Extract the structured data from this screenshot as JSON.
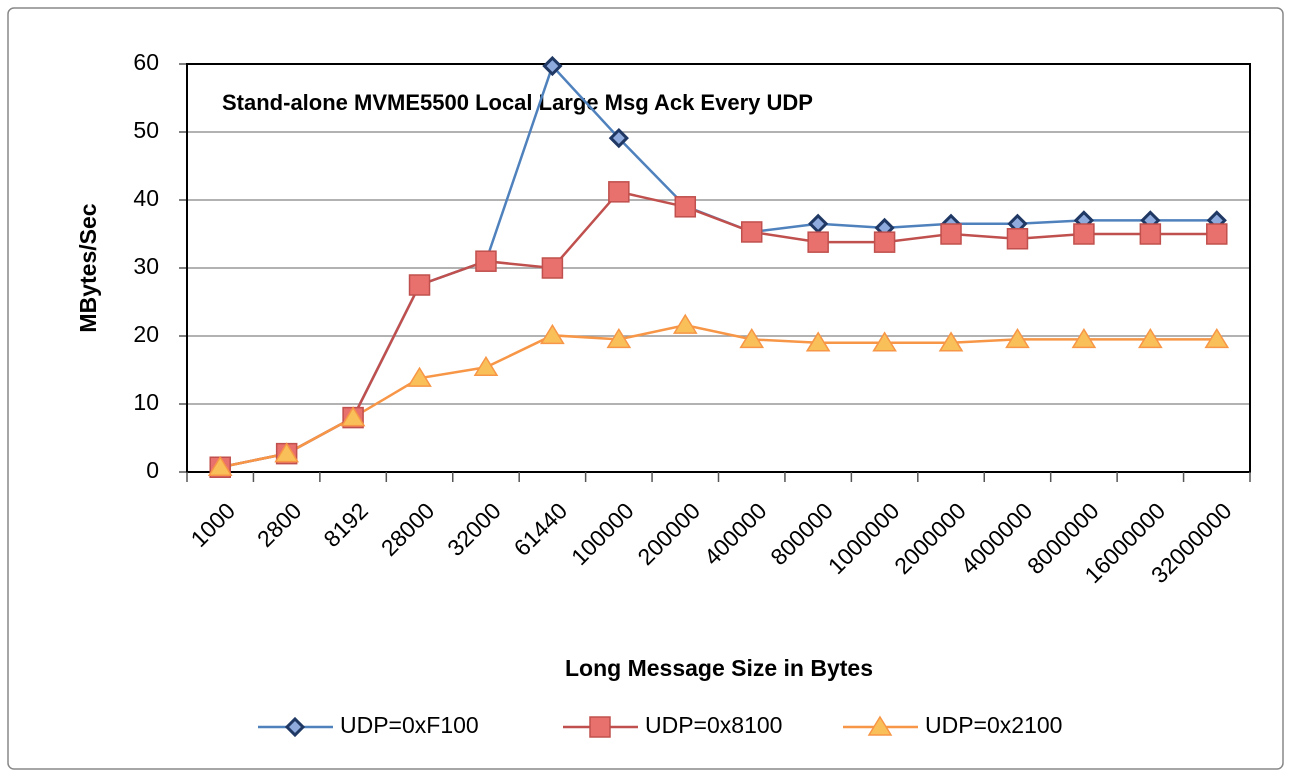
{
  "chart_data": {
    "type": "line",
    "title": "Stand-alone MVME5500 Local Large Msg Ack Every UDP",
    "x_label": "Long Message Size in Bytes",
    "y_label": "MBytes/Sec",
    "categories": [
      "1000",
      "2800",
      "8192",
      "28000",
      "32000",
      "61440",
      "100000",
      "200000",
      "400000",
      "800000",
      "1000000",
      "2000000",
      "4000000",
      "8000000",
      "16000000",
      "32000000"
    ],
    "series": [
      {
        "name": "UDP=0xF100",
        "color": "#4f81bd",
        "marker": "diamond",
        "marker_color": "#1f3864",
        "values": [
          0.7,
          2.7,
          8,
          27.5,
          31,
          59.7,
          49.1,
          39.1,
          35.3,
          36.5,
          35.9,
          36.5,
          36.5,
          37,
          37,
          37
        ]
      },
      {
        "name": "UDP=0x8100",
        "color": "#c0504d",
        "marker": "square",
        "marker_color": "#e8706d",
        "values": [
          0.7,
          2.7,
          8,
          27.5,
          31,
          30,
          41.2,
          39,
          35.3,
          33.8,
          33.8,
          35,
          34.3,
          35,
          35,
          35
        ]
      },
      {
        "name": "UDP=0x2100",
        "color": "#f79646",
        "marker": "triangle",
        "marker_color": "#f9c05a",
        "values": [
          0.7,
          2.7,
          8,
          13.8,
          15.4,
          20.1,
          19.5,
          21.6,
          19.5,
          19,
          19,
          19,
          19.5,
          19.5,
          19.5,
          19.5
        ]
      }
    ],
    "ylim": [
      0,
      60
    ],
    "yticks": [
      0,
      10,
      20,
      30,
      40,
      50,
      60
    ],
    "grid": true,
    "legend": "bottom"
  }
}
